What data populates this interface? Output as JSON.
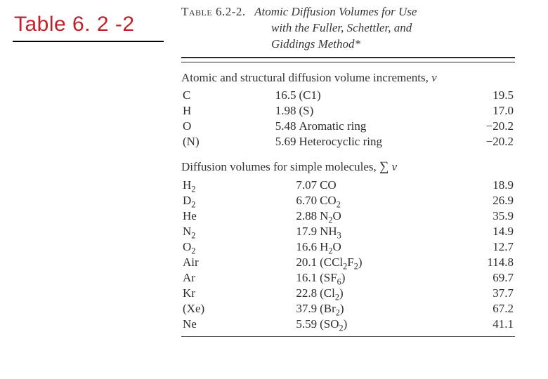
{
  "label": {
    "text": "Table 6. 2 -2",
    "color": "#c02028"
  },
  "caption": {
    "label": "Table 6.2-2.",
    "line1": "Atomic Diffusion Volumes for Use",
    "line2": "with the Fuller, Schettler, and",
    "line3": "Giddings Method*"
  },
  "sectionA": {
    "title_html": "Atomic and structural diffusion volume increments, <i>v</i>",
    "rows": [
      {
        "s1": "C",
        "v1": "16.5",
        "s2": "(C1)",
        "v2": "19.5"
      },
      {
        "s1": "H",
        "v1": "1.98",
        "s2": "(S)",
        "v2": "17.0"
      },
      {
        "s1": "O",
        "v1": "5.48",
        "s2": "Aromatic ring",
        "v2": "−20.2"
      },
      {
        "s1": "(N)",
        "v1": "5.69",
        "s2": "Heterocyclic ring",
        "v2": "−20.2"
      }
    ]
  },
  "sectionB": {
    "title_html": "Diffusion volumes for simple molecules, <span class='sigma'>&#8721;</span> <i>v</i>",
    "rows": [
      {
        "s1_html": "H<sub>2</sub>",
        "v1": "7.07",
        "s2_html": "CO",
        "v2": "18.9"
      },
      {
        "s1_html": "D<sub>2</sub>",
        "v1": "6.70",
        "s2_html": "CO<sub>2</sub>",
        "v2": "26.9"
      },
      {
        "s1_html": "He",
        "v1": "2.88",
        "s2_html": "N<sub>2</sub>O",
        "v2": "35.9"
      },
      {
        "s1_html": "N<sub>2</sub>",
        "v1": "17.9",
        "s2_html": "NH<sub>3</sub>",
        "v2": "14.9"
      },
      {
        "s1_html": "O<sub>2</sub>",
        "v1": "16.6",
        "s2_html": "H<sub>2</sub>O",
        "v2": "12.7"
      },
      {
        "s1_html": "Air",
        "v1": "20.1",
        "s2_html": "(CCl<sub>2</sub>F<sub>2</sub>)",
        "v2": "114.8"
      },
      {
        "s1_html": "Ar",
        "v1": "16.1",
        "s2_html": "(SF<sub>6</sub>)",
        "v2": "69.7"
      },
      {
        "s1_html": "Kr",
        "v1": "22.8",
        "s2_html": "(Cl<sub>2</sub>)",
        "v2": "37.7"
      },
      {
        "s1_html": "(Xe)",
        "v1": "37.9",
        "s2_html": "(Br<sub>2</sub>)",
        "v2": "67.2"
      },
      {
        "s1_html": "Ne",
        "v1": "5.59",
        "s2_html": "(SO<sub>2</sub>)",
        "v2": "41.1"
      }
    ]
  }
}
